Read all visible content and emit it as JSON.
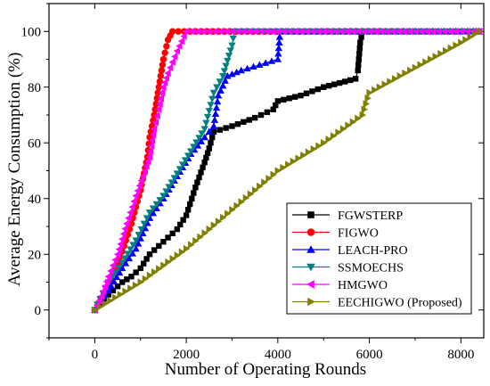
{
  "chart_data": {
    "type": "line",
    "title": "",
    "xlabel": "Number of Operating Rounds",
    "ylabel": "Average Energy Consumption (%)",
    "xlim": [
      -1000,
      8500
    ],
    "ylim": [
      -10,
      110
    ],
    "x_ticks": [
      0,
      2000,
      4000,
      6000,
      8000
    ],
    "y_ticks": [
      0,
      20,
      40,
      60,
      80,
      100
    ],
    "grid": false,
    "legend_position": "bottom-right",
    "series": [
      {
        "name": "FGWSTERP",
        "color": "#000000",
        "marker": "square",
        "points": [
          [
            0,
            0
          ],
          [
            200,
            4
          ],
          [
            400,
            7
          ],
          [
            600,
            10
          ],
          [
            800,
            12
          ],
          [
            1000,
            15
          ],
          [
            1200,
            20
          ],
          [
            1400,
            23
          ],
          [
            1600,
            26
          ],
          [
            1800,
            29
          ],
          [
            2000,
            34
          ],
          [
            2200,
            44
          ],
          [
            2400,
            53
          ],
          [
            2500,
            58
          ],
          [
            2600,
            64
          ],
          [
            3000,
            66
          ],
          [
            3500,
            69
          ],
          [
            3900,
            72
          ],
          [
            4000,
            75
          ],
          [
            4500,
            77
          ],
          [
            5000,
            80
          ],
          [
            5700,
            83
          ],
          [
            5750,
            86
          ],
          [
            5800,
            96
          ],
          [
            5850,
            100
          ],
          [
            8400,
            100
          ]
        ]
      },
      {
        "name": "FIGWO",
        "color": "#ff0000",
        "marker": "circle",
        "points": [
          [
            0,
            0
          ],
          [
            200,
            6
          ],
          [
            400,
            13
          ],
          [
            600,
            21
          ],
          [
            800,
            31
          ],
          [
            1000,
            43
          ],
          [
            1150,
            55
          ],
          [
            1200,
            62
          ],
          [
            1300,
            70
          ],
          [
            1400,
            80
          ],
          [
            1500,
            90
          ],
          [
            1600,
            97
          ],
          [
            1700,
            100
          ],
          [
            8400,
            100
          ]
        ]
      },
      {
        "name": "LEACH-PRO",
        "color": "#0000ff",
        "marker": "triangle-up",
        "points": [
          [
            0,
            0
          ],
          [
            300,
            7
          ],
          [
            600,
            15
          ],
          [
            900,
            22
          ],
          [
            1200,
            33
          ],
          [
            1500,
            40
          ],
          [
            1800,
            48
          ],
          [
            2100,
            56
          ],
          [
            2400,
            62
          ],
          [
            2600,
            66
          ],
          [
            2700,
            77
          ],
          [
            2900,
            84
          ],
          [
            3200,
            86
          ],
          [
            3600,
            88
          ],
          [
            4000,
            90
          ],
          [
            4050,
            100
          ],
          [
            8400,
            100
          ]
        ]
      },
      {
        "name": "SSMOECHS",
        "color": "#008080",
        "marker": "triangle-down",
        "points": [
          [
            0,
            0
          ],
          [
            300,
            10
          ],
          [
            600,
            17
          ],
          [
            900,
            25
          ],
          [
            1200,
            35
          ],
          [
            1500,
            41
          ],
          [
            1800,
            49
          ],
          [
            2100,
            57
          ],
          [
            2400,
            65
          ],
          [
            2600,
            78
          ],
          [
            2800,
            84
          ],
          [
            3000,
            95
          ],
          [
            3050,
            100
          ],
          [
            8400,
            100
          ]
        ]
      },
      {
        "name": "HMGWO",
        "color": "#ff00ff",
        "marker": "triangle-left",
        "points": [
          [
            0,
            0
          ],
          [
            150,
            5
          ],
          [
            300,
            12
          ],
          [
            500,
            20
          ],
          [
            700,
            31
          ],
          [
            900,
            41
          ],
          [
            1100,
            50
          ],
          [
            1200,
            55
          ],
          [
            1300,
            65
          ],
          [
            1400,
            72
          ],
          [
            1500,
            80
          ],
          [
            1600,
            85
          ],
          [
            1800,
            93
          ],
          [
            2000,
            100
          ],
          [
            8400,
            100
          ]
        ]
      },
      {
        "name": "EECHIGWO (Proposed)",
        "color": "#808000",
        "marker": "triangle-right",
        "points": [
          [
            0,
            0
          ],
          [
            1000,
            10
          ],
          [
            2000,
            22
          ],
          [
            3000,
            36
          ],
          [
            4000,
            50
          ],
          [
            5000,
            60
          ],
          [
            5850,
            70
          ],
          [
            6000,
            78
          ],
          [
            7000,
            87
          ],
          [
            8000,
            96
          ],
          [
            8400,
            100
          ]
        ]
      }
    ]
  }
}
